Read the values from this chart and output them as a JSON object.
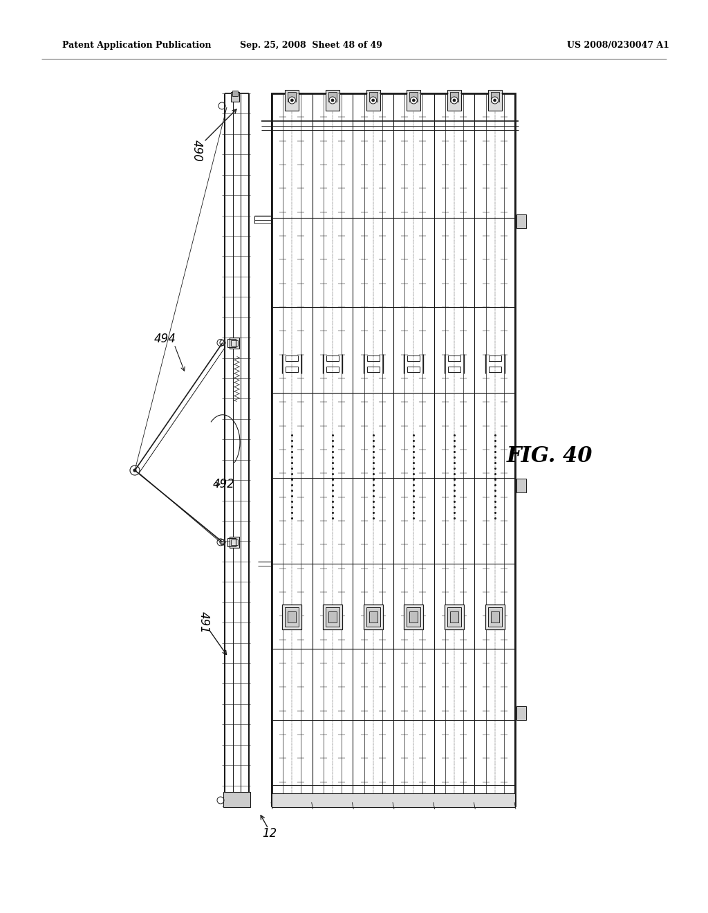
{
  "bg_color": "#ffffff",
  "header_left": "Patent Application Publication",
  "header_mid": "Sep. 25, 2008  Sheet 48 of 49",
  "header_right": "US 2008/0230047 A1",
  "fig_label": "FIG. 40",
  "line_color": "#1a1a1a",
  "gray_fill": "#c8c8c8",
  "dark_gray": "#888888",
  "light_gray": "#e0e0e0"
}
